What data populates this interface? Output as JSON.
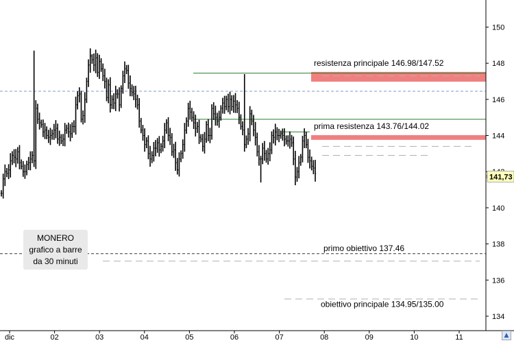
{
  "chart_data": {
    "type": "bar",
    "title": "",
    "xlabel": "",
    "ylabel": "",
    "ylim": [
      133.2,
      151.5
    ],
    "y_ticks": [
      134,
      136,
      138,
      140,
      142,
      144,
      146,
      148,
      150
    ],
    "x_ticks": [
      "dic",
      "02",
      "03",
      "04",
      "05",
      "06",
      "07",
      "08",
      "09",
      "10",
      "11"
    ],
    "last_price_label": "141,73",
    "last_price": 141.73,
    "grid": "none",
    "series": [
      {
        "values": [
          140.8,
          141.6,
          142.0,
          141.9,
          142.1,
          142.6,
          142.9,
          142.8,
          142.7,
          143.1,
          142.5,
          142.3,
          142.0,
          142.0,
          142.4,
          142.5,
          142.7,
          142.9,
          142.6,
          145.5,
          144.9,
          144.7,
          144.6,
          144.2,
          144.3,
          144.0,
          143.9,
          144.0,
          144.1,
          144.3,
          144.4,
          143.8,
          143.9,
          143.7,
          143.8,
          144.3,
          144.4,
          144.2,
          144.1,
          144.5,
          144.5,
          145.7,
          146.2,
          146.3,
          144.9,
          145.1,
          146.0,
          147.0,
          147.9,
          148.4,
          148.2,
          147.9,
          148.3,
          147.5,
          148.1,
          147.7,
          147.3,
          147.0,
          146.1,
          146.8,
          145.7,
          146.0,
          145.8,
          146.3,
          146.3,
          145.7,
          146.6,
          147.3,
          147.7,
          147.6,
          146.9,
          146.6,
          146.4,
          146.3,
          146.0,
          145.7,
          144.8,
          144.3,
          144.0,
          143.5,
          143.7,
          143.0,
          142.7,
          142.9,
          143.3,
          143.3,
          143.6,
          143.2,
          143.4,
          143.7,
          144.3,
          144.7,
          144.0,
          143.9,
          143.1,
          143.2,
          142.5,
          142.1,
          142.7,
          143.0,
          143.5,
          144.3,
          144.8,
          145.5,
          145.3,
          145.0,
          144.7,
          144.4,
          144.5,
          143.9,
          143.8,
          143.4,
          143.8,
          144.6,
          144.0,
          144.0,
          145.5,
          145.2,
          145.0,
          144.8,
          145.0,
          145.5,
          145.8,
          145.6,
          146.0,
          145.6,
          146.0,
          145.6,
          145.9,
          145.7,
          145.5,
          145.0,
          144.5,
          144.3,
          143.5,
          143.8,
          144.1,
          145.2,
          144.8,
          144.3,
          143.9,
          143.1,
          142.7,
          142.7,
          143.3,
          143.0,
          142.7,
          143.0,
          143.2,
          144.0,
          143.9,
          144.2,
          144.0,
          144.0,
          144.1,
          144.0,
          143.8,
          143.7,
          143.7,
          143.8,
          143.6,
          142.7,
          141.7,
          142.0,
          142.5,
          142.8,
          143.7,
          144.0,
          143.5,
          142.8,
          142.6,
          142.3,
          142.2,
          141.9
        ]
      }
    ],
    "annotations": [
      {
        "text": "resistenza principale 146.98/147.52",
        "level": 147.52
      },
      {
        "text": "prima resistenza 143.76/144.02",
        "level": 144.02
      },
      {
        "text": "primo obiettivo 137.46",
        "level": 137.46
      },
      {
        "text": "obiettivo principale 134.95/135.00",
        "level": 135.0
      }
    ],
    "resistance_zones": [
      {
        "from": 146.98,
        "to": 147.52,
        "color": "#f08080"
      },
      {
        "from": 143.76,
        "to": 144.02,
        "color": "#f08080"
      }
    ],
    "reference_levels": [
      {
        "value": 146.45,
        "color": "#7f97c8",
        "style": "dashed"
      },
      {
        "value": 137.46,
        "color": "#333333",
        "style": "dashed"
      },
      {
        "value": 147.45,
        "color": "#2d7a2d",
        "style": "solid"
      },
      {
        "value": 144.9,
        "color": "#2d7a2d",
        "style": "solid"
      },
      {
        "value": 144.2,
        "color": "#2d7a2d",
        "style": "solid"
      }
    ],
    "colors": {
      "bars": "#000000",
      "zone": "#f08080",
      "green_line": "#2d7a2d",
      "blue_dash": "#7f97c8",
      "grey_dash": "#b0b0b0"
    }
  },
  "info_box": {
    "line1": "MONERO",
    "line2": "grafico a barre",
    "line3": "da 30 minuti"
  },
  "nav_button_icon": "arrow-up-icon"
}
